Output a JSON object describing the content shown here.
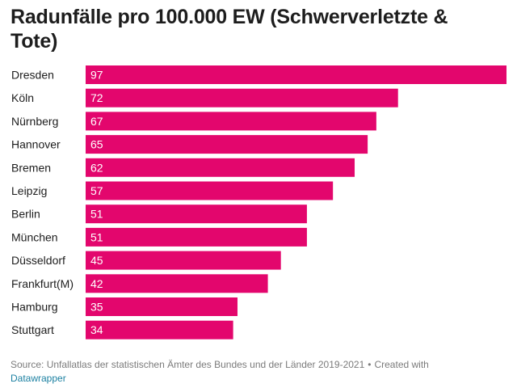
{
  "chart_data": {
    "type": "bar",
    "orientation": "horizontal",
    "title": "Radunfälle pro 100.000 EW (Schwerverletzte & Tote)",
    "categories": [
      "Dresden",
      "Köln",
      "Nürnberg",
      "Hannover",
      "Bremen",
      "Leipzig",
      "Berlin",
      "München",
      "Düsseldorf",
      "Frankfurt(M)",
      "Hamburg",
      "Stuttgart"
    ],
    "values": [
      97,
      72,
      67,
      65,
      62,
      57,
      51,
      51,
      45,
      42,
      35,
      34
    ],
    "value_labels": [
      "97",
      "72",
      "67",
      "65",
      "62",
      "57",
      "51",
      "51",
      "45",
      "42",
      "35",
      "34"
    ],
    "xlim": [
      0,
      97
    ],
    "grid": false,
    "bar_color": "#e3066d",
    "label_color": "#ffffff"
  },
  "footer": {
    "source": "Source: Unfallatlas der statistischen Ämter des Bundes und der Länder 2019-2021",
    "separator": "•",
    "created_with": "Created with",
    "link": "Datawrapper"
  },
  "colors": {
    "title": "#1d1d1d",
    "footer_text": "#7b7b7b",
    "link": "#1d81a2"
  }
}
